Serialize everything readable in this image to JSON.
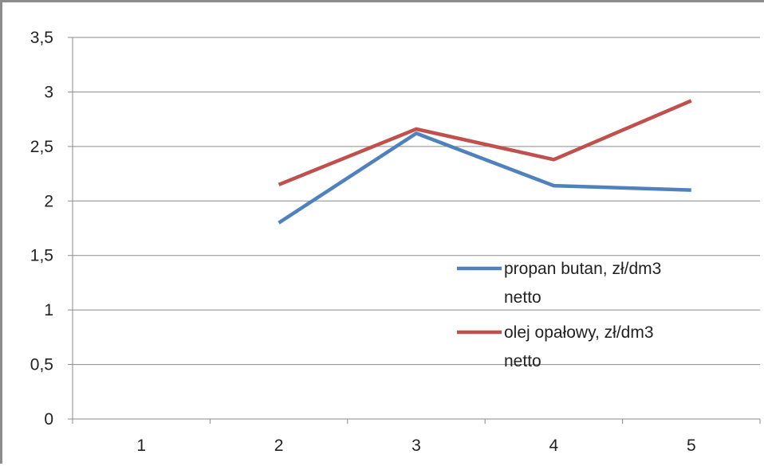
{
  "chart_data": {
    "type": "line",
    "categories": [
      "1",
      "2",
      "3",
      "4",
      "5"
    ],
    "series": [
      {
        "name_lines": [
          "propan butan, zł/dm3",
          "netto"
        ],
        "color": "#4F81BD",
        "values": [
          null,
          1.8,
          2.62,
          2.14,
          2.1
        ]
      },
      {
        "name_lines": [
          "olej opałowy,  zł/dm3",
          "netto"
        ],
        "color": "#C0504D",
        "values": [
          null,
          2.15,
          2.66,
          2.38,
          2.92
        ]
      }
    ],
    "yticks": [
      "0",
      "0,5",
      "1",
      "1,5",
      "2",
      "2,5",
      "3",
      "3,5"
    ],
    "ylim": [
      0,
      3.5
    ],
    "grid": true,
    "legend_position": "right-inside"
  }
}
